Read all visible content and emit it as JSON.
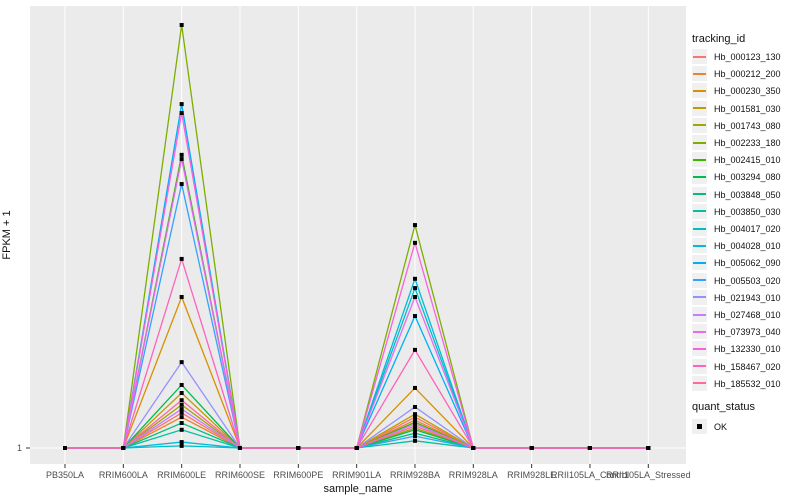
{
  "figure": {
    "background": "#ffffff",
    "panel_background": "#EBEBEB",
    "gridline_color": "#ffffff",
    "tick_color": "#333333",
    "point_color": "#000000"
  },
  "legend": {
    "tracking_title": "tracking_id",
    "quant_title": "quant_status",
    "quant_item_label": "OK"
  },
  "chart_data": {
    "type": "line",
    "title": "",
    "xlabel": "sample_name",
    "ylabel": "FPKM + 1",
    "y_tick_labels": [
      "1"
    ],
    "values_unit": "relative height fraction above baseline value 1 (1.0 = tallest peak, estimated from pixels)",
    "legend_position": "right",
    "grid": "vertical white gridlines per sample, horizontal white gridline at y=1",
    "marker": "small black square at every data point (quant_status OK)",
    "x": [
      "PB350LA",
      "RRIM600LA",
      "RRIM600LE",
      "RRIM600SE",
      "RRIM600PE",
      "RRIM901LA",
      "RRIM928BA",
      "RRIM928LA",
      "RRIM928LE",
      "RRII105LA_Control",
      "RRII105LA_Stressed"
    ],
    "series": [
      {
        "name": "Hb_000123_130",
        "color": "#F8766D",
        "values": [
          0,
          0,
          0.083,
          0,
          0,
          0,
          0.073,
          0,
          0,
          0,
          0
        ]
      },
      {
        "name": "Hb_000212_200",
        "color": "#EA8331",
        "values": [
          0,
          0,
          0.073,
          0,
          0,
          0,
          0.066,
          0,
          0,
          0,
          0
        ]
      },
      {
        "name": "Hb_000230_350",
        "color": "#D89000",
        "values": [
          0,
          0,
          0.357,
          0,
          0,
          0,
          0.142,
          0,
          0,
          0,
          0
        ]
      },
      {
        "name": "Hb_001581_030",
        "color": "#C09B00",
        "values": [
          0,
          0,
          0.13,
          0,
          0,
          0,
          0.08,
          0,
          0,
          0,
          0
        ]
      },
      {
        "name": "Hb_001743_080",
        "color": "#A3A500",
        "values": [
          0,
          0,
          0.102,
          0,
          0,
          0,
          0.047,
          0,
          0,
          0,
          0
        ]
      },
      {
        "name": "Hb_002233_180",
        "color": "#7CAE00",
        "values": [
          0,
          0,
          1.0,
          0,
          0,
          0,
          0.527,
          0,
          0,
          0,
          0
        ]
      },
      {
        "name": "Hb_002415_010",
        "color": "#39B600",
        "values": [
          0,
          0,
          0.693,
          0,
          0,
          0,
          0.061,
          0,
          0,
          0,
          0
        ]
      },
      {
        "name": "Hb_003294_080",
        "color": "#00BB4E",
        "values": [
          0,
          0,
          0.149,
          0,
          0,
          0,
          0.043,
          0,
          0,
          0,
          0
        ]
      },
      {
        "name": "Hb_003848_050",
        "color": "#00BF7D",
        "values": [
          0,
          0,
          0.059,
          0,
          0,
          0,
          0.035,
          0,
          0,
          0,
          0
        ]
      },
      {
        "name": "Hb_003850_030",
        "color": "#00C1A3",
        "values": [
          0,
          0,
          0.043,
          0,
          0,
          0,
          0.017,
          0,
          0,
          0,
          0
        ]
      },
      {
        "name": "Hb_004017_020",
        "color": "#00BFC4",
        "values": [
          0,
          0,
          0.005,
          0,
          0,
          0,
          0.378,
          0,
          0,
          0,
          0
        ]
      },
      {
        "name": "Hb_004028_010",
        "color": "#00BAE0",
        "values": [
          0,
          0,
          0.014,
          0,
          0,
          0,
          0.4,
          0,
          0,
          0,
          0
        ]
      },
      {
        "name": "Hb_005062_090",
        "color": "#00B0F6",
        "values": [
          0,
          0,
          0.813,
          0,
          0,
          0,
          0.312,
          0,
          0,
          0,
          0
        ]
      },
      {
        "name": "Hb_005503_020",
        "color": "#35A2FF",
        "values": [
          0,
          0,
          0.624,
          0,
          0,
          0,
          0.028,
          0,
          0,
          0,
          0
        ]
      },
      {
        "name": "Hb_021943_010",
        "color": "#9590FF",
        "values": [
          0,
          0,
          0.203,
          0,
          0,
          0,
          0.097,
          0,
          0,
          0,
          0
        ]
      },
      {
        "name": "Hb_027468_010",
        "color": "#C77CFF",
        "values": [
          0,
          0,
          0.092,
          0,
          0,
          0,
          0.057,
          0,
          0,
          0,
          0
        ]
      },
      {
        "name": "Hb_073973_040",
        "color": "#E76BF3",
        "values": [
          0,
          0,
          0.683,
          0,
          0,
          0,
          0.357,
          0,
          0,
          0,
          0
        ]
      },
      {
        "name": "Hb_132330_010",
        "color": "#FA62DB",
        "values": [
          0,
          0,
          0.792,
          0,
          0,
          0,
          0.485,
          0,
          0,
          0,
          0
        ]
      },
      {
        "name": "Hb_158467_020",
        "color": "#FF62BC",
        "values": [
          0,
          0,
          0.447,
          0,
          0,
          0,
          0.232,
          0,
          0,
          0,
          0
        ]
      },
      {
        "name": "Hb_185532_010",
        "color": "#FF6A98",
        "values": [
          0,
          0,
          0.113,
          0,
          0,
          0,
          0.052,
          0,
          0,
          0,
          0
        ]
      }
    ]
  }
}
